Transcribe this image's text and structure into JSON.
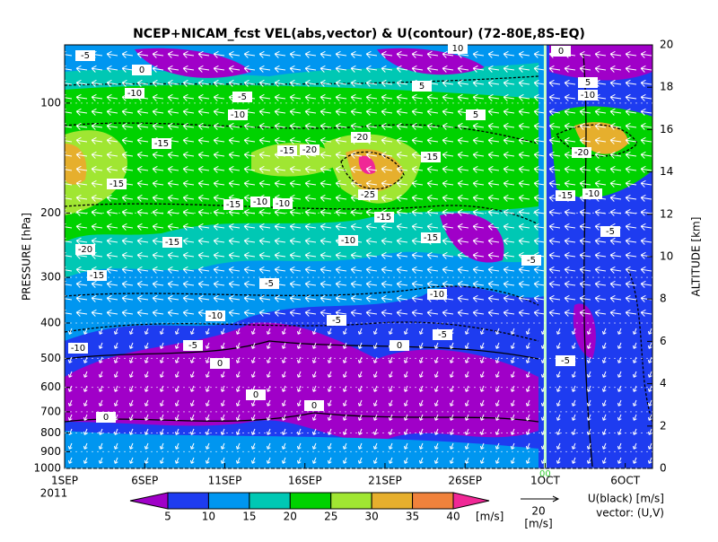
{
  "chart_data": {
    "type": "contour",
    "title": "NCEP+NICAM_fcst VEL(abs,vector) & U(contour)   (72-80E,8S-EQ)",
    "ylabel": "PRESSURE [hPa]",
    "y2label": "ALTITUDE [km]",
    "year_label": "2011",
    "xlim": [
      0,
      36.7
    ],
    "xticks": [
      {
        "value": 0,
        "label": "1SEP"
      },
      {
        "value": 5,
        "label": "6SEP"
      },
      {
        "value": 10,
        "label": "11SEP"
      },
      {
        "value": 15,
        "label": "16SEP"
      },
      {
        "value": 20,
        "label": "21SEP"
      },
      {
        "value": 25,
        "label": "26SEP"
      },
      {
        "value": 30,
        "label": "1OCT"
      },
      {
        "value": 35,
        "label": "6OCT"
      }
    ],
    "ylim": [
      1000,
      69.3
    ],
    "ylog": true,
    "yticks": [
      100,
      200,
      300,
      400,
      500,
      600,
      700,
      800,
      900,
      1000
    ],
    "y2lim": [
      0,
      20
    ],
    "y2ticks": [
      0,
      2,
      4,
      6,
      8,
      10,
      12,
      14,
      16,
      18,
      20
    ],
    "forecast_start": 30,
    "forecast_start_label": "00",
    "contour_labels": [
      -5,
      0,
      -10,
      -5,
      -10,
      -15,
      -15,
      -20,
      -15,
      -15,
      -10,
      -15,
      -20,
      -25,
      -15,
      -10,
      -10,
      -15,
      -5,
      -10,
      -5,
      -10,
      -5,
      -10,
      -15,
      -20,
      -15,
      -5,
      -20,
      -15,
      -10,
      -5,
      0,
      0,
      5,
      0,
      0,
      5,
      10,
      5,
      -5,
      -5,
      -10,
      0,
      0
    ],
    "colorbar": {
      "levels": [
        5,
        10,
        15,
        20,
        25,
        30,
        35,
        40
      ],
      "colors": [
        "#a000c8",
        "#1e3cf0",
        "#0096f0",
        "#00c8b4",
        "#00d200",
        "#a0e632",
        "#e6af2d",
        "#f0823c",
        "#f02896"
      ],
      "units": "[m/s]"
    },
    "vector_legend": {
      "value": 20,
      "units": "[m/s]"
    },
    "contour_note": "U(black) [m/s]",
    "vector_note": "vector: (U,V)"
  }
}
